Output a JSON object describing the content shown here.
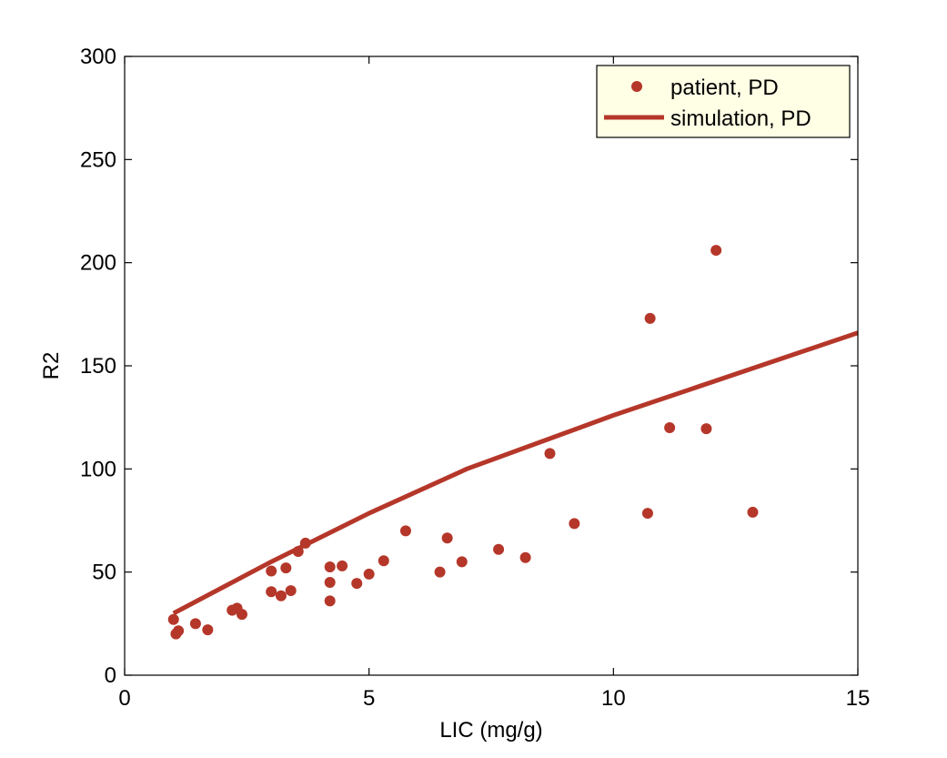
{
  "chart_data": {
    "type": "scatter",
    "title": "",
    "xlabel": "LIC (mg/g)",
    "ylabel": "R2",
    "xlim": [
      0,
      15
    ],
    "ylim": [
      0,
      300
    ],
    "xticks": [
      "0",
      "5",
      "10",
      "15"
    ],
    "yticks": [
      "0",
      "50",
      "100",
      "150",
      "200",
      "250",
      "300"
    ],
    "grid": false,
    "legend_position": "top-right",
    "colors": {
      "series": "#b5372a",
      "legend_bg": "#ffffe5"
    },
    "series": [
      {
        "name": "patient, PD",
        "kind": "scatter",
        "x": [
          1.0,
          1.05,
          1.1,
          1.45,
          1.7,
          2.2,
          2.3,
          2.4,
          3.0,
          3.0,
          3.2,
          3.3,
          3.4,
          3.55,
          3.7,
          4.2,
          4.2,
          4.2,
          4.45,
          4.75,
          5.0,
          5.3,
          5.75,
          6.45,
          6.6,
          6.9,
          7.65,
          8.2,
          8.7,
          9.2,
          10.7,
          10.75,
          11.15,
          11.9,
          12.1,
          12.85
        ],
        "y": [
          27,
          20,
          21.5,
          25,
          22,
          31.5,
          32.5,
          29.5,
          50.5,
          40.5,
          38.5,
          52,
          41,
          60,
          64,
          36,
          45,
          52.5,
          53,
          44.5,
          49,
          55.5,
          70,
          50,
          66.5,
          55,
          61,
          57,
          107.5,
          73.5,
          78.5,
          173,
          120,
          119.5,
          206,
          79
        ]
      },
      {
        "name": "simulation, PD",
        "kind": "line",
        "x": [
          1,
          3,
          5,
          7,
          10,
          15
        ],
        "y": [
          30,
          55,
          78.5,
          100,
          126,
          166
        ]
      }
    ]
  }
}
